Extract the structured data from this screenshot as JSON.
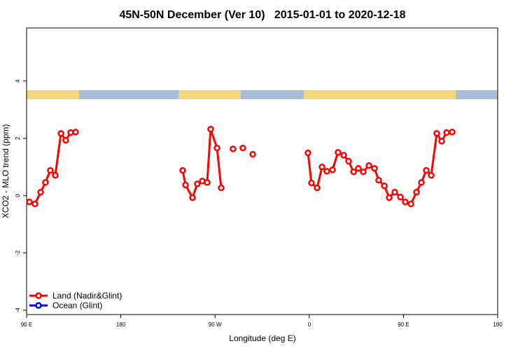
{
  "chart_data": {
    "type": "line",
    "title": "45N-50N December (Ver 10)   2015-01-01 to 2020-12-18",
    "xlabel": "Longitude (deg E)",
    "ylabel": "XCO2 - MLO trend (ppm)",
    "xlim": [
      90,
      540
    ],
    "xticks": [
      {
        "value": 90,
        "label": "90 E"
      },
      180,
      {
        "value": 270,
        "label": "90 W"
      },
      {
        "value": 360,
        "label": "0"
      },
      {
        "value": 450,
        "label": "90 E"
      },
      {
        "value": 540,
        "label": "180"
      }
    ],
    "ylim": [
      -4.15,
      5.85
    ],
    "yticks": [
      -4,
      -2,
      0,
      2,
      4
    ],
    "series": [
      {
        "name": "Land (Nadir&Glint)",
        "color": "#ff0000",
        "x": [
          92.7,
          98,
          103.4,
          108,
          112.7,
          117.4,
          122.8,
          127.4,
          132.1,
          136.8,
          null,
          239.1,
          241.8,
          248.5,
          253.1,
          257.8,
          262.5,
          265.8,
          271.9,
          275.9,
          null,
          287.2,
          null,
          296.6,
          null,
          306,
          null,
          358.8,
          362.1,
          367.5,
          372.2,
          376.8,
          382.2,
          387.5,
          392.9,
          397.6,
          402.3,
          406.9,
          411.6,
          417,
          422.3,
          426.3,
          431.7,
          436.4,
          441.7,
          447.1,
          451.7,
          457.1,
          462.4,
          467.1,
          471.8,
          476.5,
          481.8,
          486.5,
          491.2,
          496.5
        ],
        "values": [
          -0.22,
          -0.29,
          0.12,
          0.46,
          0.88,
          0.71,
          2.17,
          1.93,
          2.2,
          2.22,
          null,
          0.88,
          0.37,
          -0.07,
          0.41,
          0.51,
          0.46,
          2.32,
          1.66,
          0.27,
          null,
          1.63,
          null,
          1.66,
          null,
          1.44,
          null,
          1.49,
          0.44,
          0.27,
          1.0,
          0.85,
          0.9,
          1.51,
          1.41,
          1.2,
          0.83,
          0.95,
          0.83,
          1.05,
          0.95,
          0.54,
          0.34,
          -0.07,
          0.12,
          -0.05,
          -0.22,
          -0.29,
          0.12,
          0.46,
          0.88,
          0.71,
          2.17,
          1.9,
          2.2,
          2.22
        ]
      },
      {
        "name": "Ocean (Glint)",
        "color": "#0000ff",
        "x": [],
        "values": []
      }
    ]
  }
}
